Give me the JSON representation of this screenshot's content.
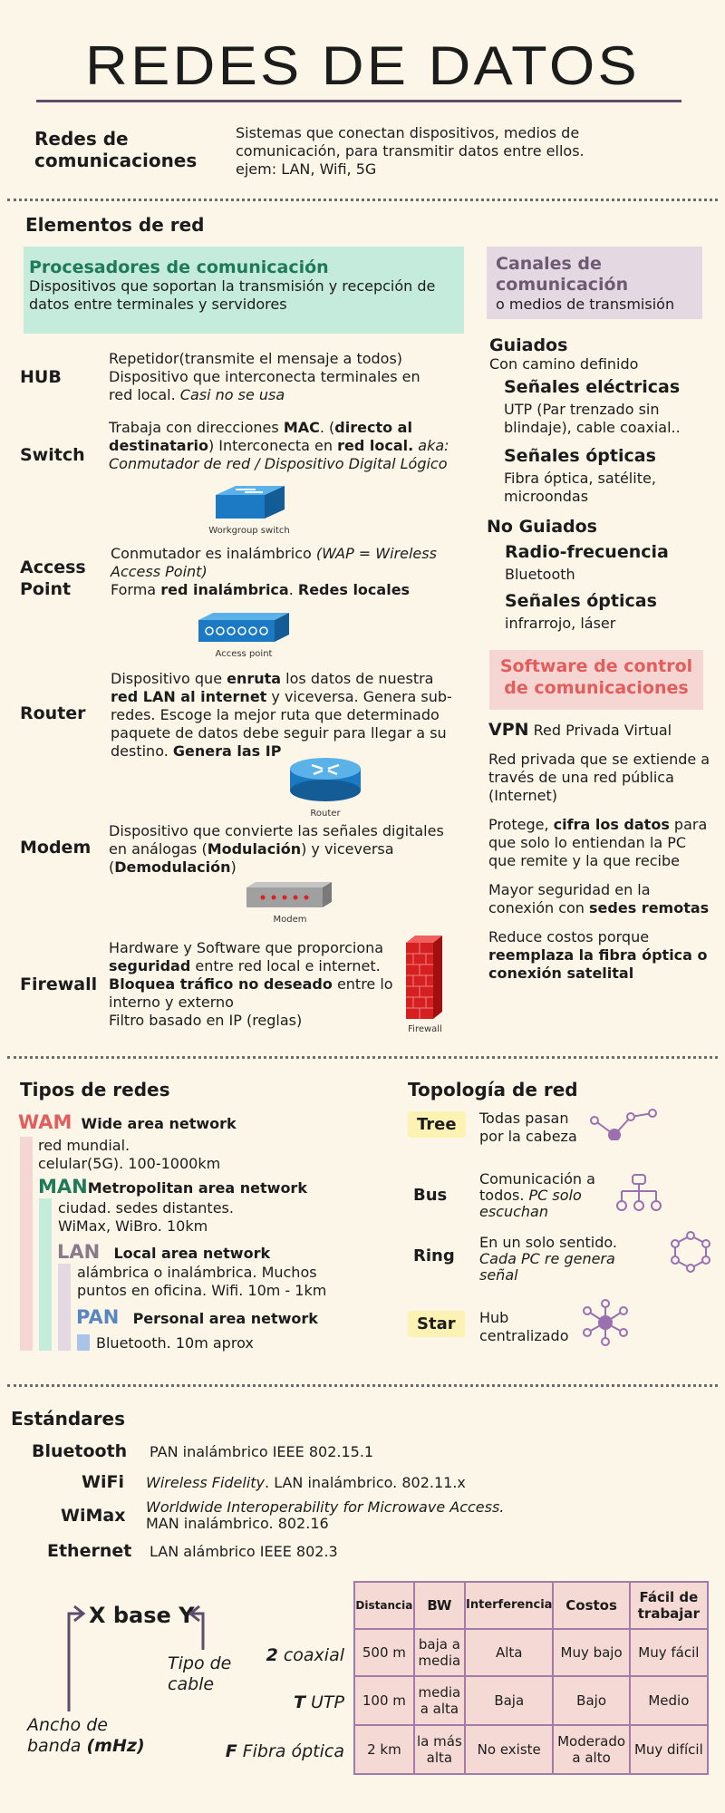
{
  "title": "REDES DE DATOS",
  "intro": {
    "term": "Redes de comunicaciones",
    "line1": "Sistemas que conectan dispositivos, medios de",
    "line2": "comunicación, para transmitir datos entre ellos.",
    "line3": "ejem: LAN, Wifi, 5G"
  },
  "elementos": {
    "heading": "Elementos de red",
    "proc_title": "Procesadores de comunicación",
    "proc_desc": "Dispositivos que soportan la transmisión y recepción de datos entre terminales y servidores",
    "canales_title": "Canales de comunicación",
    "canales_sub": "o medios de transmisión",
    "hub": {
      "label": "HUB",
      "l1": "Repetidor(transmite el mensaje a todos)",
      "l2": "Dispositivo que interconecta terminales en",
      "l3": "red local. ",
      "l3i": "Casi no se usa"
    },
    "switch": {
      "label": "Switch",
      "a": "Trabaja con direcciones ",
      "b": "MAC",
      "c": ". (",
      "d": "directo al destinatario",
      "e": ")  Interconecta en ",
      "f": "red local.",
      "g": "  aka: Conmutador de red / Dispositivo Digital Lógico",
      "cap": "Workgroup switch"
    },
    "ap": {
      "label": "Access Point",
      "a": "Conmutador es inalámbrico ",
      "ai": "(WAP = Wireless Access Point)",
      "b": "Forma ",
      "c": "red inalámbrica",
      "d": ". ",
      "e": "Redes locales",
      "cap": "Access point"
    },
    "router": {
      "label": "Router",
      "a": "Dispositivo que ",
      "b": "enruta",
      "c": " los datos de nuestra ",
      "d": "red LAN al internet",
      "e": " y viceversa. Genera sub-redes. Escoge la mejor ruta que determinado paquete de datos debe seguir para llegar a su destino. ",
      "f": "Genera las IP",
      "cap": "Router"
    },
    "modem": {
      "label": "Modem",
      "a": "Dispositivo que convierte las señales digitales en análogas (",
      "b": "Modulación",
      "c": ") y viceversa (",
      "d": "Demodulación",
      "e": ")",
      "cap": "Modem"
    },
    "firewall": {
      "label": "Firewall",
      "a": "Hardware y Software que proporciona ",
      "b": "seguridad",
      "c": " entre red local e internet.",
      "d": "Bloquea tráfico no deseado",
      "e": " entre lo interno y externo",
      "f": "Filtro basado en IP (reglas)",
      "cap": "Firewall"
    },
    "guiados": {
      "title": "Guiados",
      "sub": "Con camino definido",
      "e_title": "Señales eléctricas",
      "e_desc": "UTP (Par trenzado sin blindaje), cable coaxial..",
      "o_title": "Señales ópticas",
      "o_desc": "Fibra óptica, satélite, microondas"
    },
    "noguiados": {
      "title": "No Guiados",
      "r_title": "Radio-frecuencia",
      "r_desc": "Bluetooth",
      "o_title": "Señales ópticas",
      "o_desc": "infrarrojo, láser"
    },
    "software": {
      "title": "Software de control de comunicaciones",
      "vpn": "VPN",
      "vpn_desc": " Red Privada Virtual",
      "p1": "Red privada que se extiende a través de una red pública (Internet)",
      "p2a": "Protege, ",
      "p2b": "cifra los datos",
      "p2c": " para que solo lo entiendan la PC que remite y la que recibe",
      "p3a": "Mayor seguridad en la conexión con ",
      "p3b": "sedes remotas",
      "p4a": "Reduce costos porque ",
      "p4b": "reemplaza la fibra óptica o conexión satelital"
    }
  },
  "tipos": {
    "heading": "Tipos de redes",
    "wam": {
      "abbr": "WAM",
      "name": "Wide area network",
      "l1": "red mundial.",
      "l2": "celular(5G). 100-1000km"
    },
    "man": {
      "abbr": "MAN",
      "name": "Metropolitan area network",
      "l1": "ciudad. sedes distantes.",
      "l2": "WiMax, WiBro. 10km"
    },
    "lan": {
      "abbr": "LAN",
      "name": "Local area network",
      "l1": "alámbrica o inalámbrica. Muchos",
      "l2": "puntos en oficina. Wifi. 10m - 1km"
    },
    "pan": {
      "abbr": "PAN",
      "name": "Personal area network",
      "l1": "Bluetooth. 10m aprox"
    }
  },
  "topologia": {
    "heading": "Topología de red",
    "tree": {
      "label": "Tree",
      "desc": "Todas pasan por la cabeza"
    },
    "bus": {
      "label": "Bus",
      "d1": "Comunicación a todos. ",
      "d2": "PC solo escuchan"
    },
    "ring": {
      "label": "Ring",
      "d1": "En un solo sentido. ",
      "d2": "Cada PC re genera señal"
    },
    "star": {
      "label": "Star",
      "desc": "Hub centralizado"
    }
  },
  "estandares": {
    "heading": "Estándares",
    "items": [
      {
        "name": "Bluetooth",
        "desc": "PAN inalámbrico IEEE 802.15.1"
      },
      {
        "name": "WiFi",
        "desc_i": "Wireless Fidelity",
        "desc": ". LAN inalámbrico. 802.11.x"
      },
      {
        "name": "WiMax",
        "desc_i": "Worldwide Interoperability for Microwave Access.",
        "desc": "MAN inalámbrico. 802.16"
      },
      {
        "name": "Ethernet",
        "desc": "LAN alámbrico IEEE 802.3"
      }
    ]
  },
  "cable": {
    "formula": "X base Y",
    "tipo": "Tipo de cable",
    "ancho_a": "Ancho de banda ",
    "ancho_b": "(mHz)",
    "rows": [
      {
        "k": "2",
        "v": " coaxial"
      },
      {
        "k": "T",
        "v": " UTP"
      },
      {
        "k": "F",
        "v": " Fibra óptica"
      }
    ]
  },
  "tabla": {
    "headers": [
      "Distancia",
      "BW",
      "Interferencia",
      "Costos",
      "Fácil de trabajar"
    ],
    "rows": [
      [
        "500 m",
        "baja a media",
        "Alta",
        "Muy bajo",
        "Muy fácil"
      ],
      [
        "100 m",
        "media a alta",
        "Baja",
        "Bajo",
        "Medio"
      ],
      [
        "2 km",
        "la más alta",
        "No existe",
        "Moderado a alto",
        "Muy difícil"
      ]
    ]
  },
  "colors": {
    "wam": "#e35d5d",
    "man": "#1f7a5a",
    "lan": "#8a7a8c",
    "pan": "#5a86c0",
    "icon": "#9a70b0"
  }
}
